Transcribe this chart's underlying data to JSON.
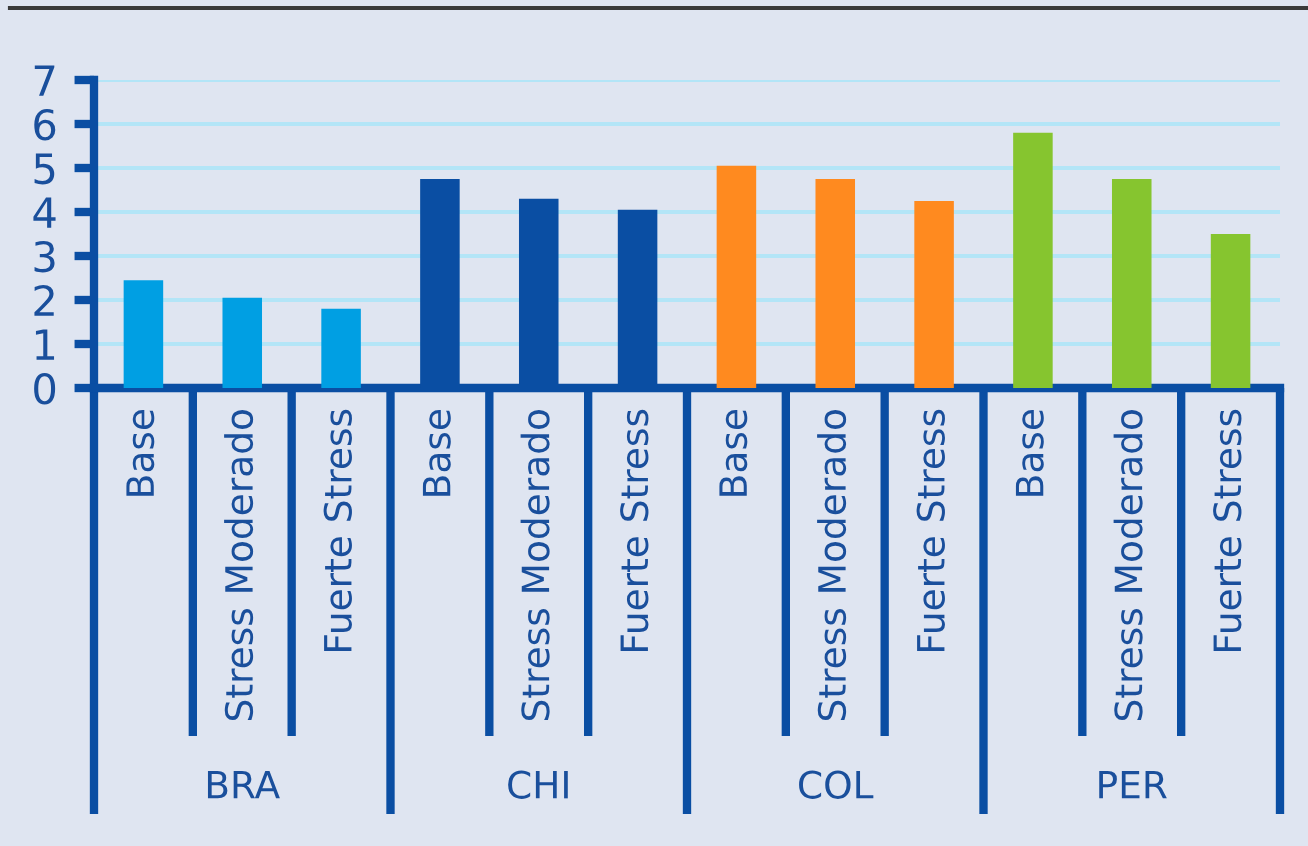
{
  "chart_data": {
    "type": "bar",
    "categories": [
      "Base",
      "Stress Moderado",
      "Fuerte Stress",
      "Base",
      "Stress Moderado",
      "Fuerte Stress",
      "Base",
      "Stress Moderado",
      "Fuerte Stress",
      "Base",
      "Stress Moderado",
      "Fuerte Stress"
    ],
    "values": [
      2.45,
      2.05,
      1.8,
      4.75,
      4.3,
      4.05,
      5.05,
      4.75,
      4.25,
      5.8,
      4.75,
      3.5
    ],
    "colors": [
      "#009fe3",
      "#009fe3",
      "#009fe3",
      "#0a4ea3",
      "#0a4ea3",
      "#0a4ea3",
      "#ff8a1f",
      "#ff8a1f",
      "#ff8a1f",
      "#86c52f",
      "#86c52f",
      "#86c52f"
    ],
    "annotations": [
      "BRA",
      "CHI",
      "COL",
      "PER"
    ],
    "ylim": [
      0,
      7
    ],
    "yticks": [
      0,
      1,
      2,
      3,
      4,
      5,
      6,
      7
    ],
    "grid": "y"
  }
}
